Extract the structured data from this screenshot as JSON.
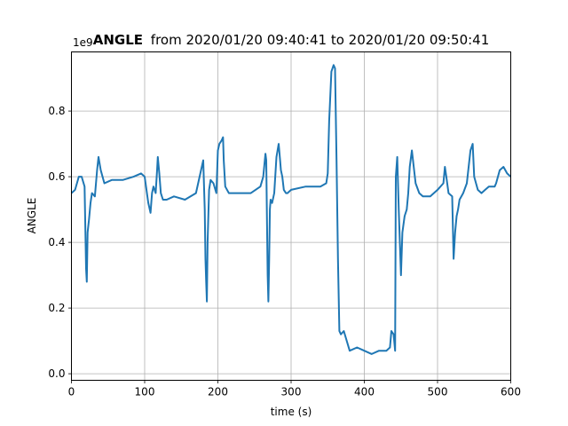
{
  "chart_data": {
    "type": "line",
    "title_bold": "ANGLE",
    "title_rest": "from 2020/01/20 09:40:41 to 2020/01/20 09:50:41",
    "offset_text": "1e9",
    "xlabel": "time (s)",
    "ylabel": "ANGLE",
    "xlim": [
      0,
      600
    ],
    "ylim": [
      -0.02,
      0.98
    ],
    "x_ticks": [
      0,
      100,
      200,
      300,
      400,
      500,
      600
    ],
    "x_tick_labels": [
      "0",
      "100",
      "200",
      "300",
      "400",
      "500",
      "600"
    ],
    "y_ticks": [
      0.0,
      0.2,
      0.4,
      0.6,
      0.8
    ],
    "y_tick_labels": [
      "0.0",
      "0.2",
      "0.4",
      "0.6",
      "0.8"
    ],
    "grid": true,
    "line_color": "#1f77b4",
    "series": [
      {
        "x": [
          0,
          5,
          10,
          14,
          18,
          20,
          21,
          22,
          24,
          26,
          28,
          32,
          35,
          37,
          40,
          45,
          55,
          70,
          85,
          95,
          100,
          105,
          108,
          110,
          112,
          115,
          117,
          118,
          120,
          122,
          125,
          130,
          140,
          155,
          170,
          175,
          180,
          182,
          183,
          184,
          185,
          186,
          188,
          190,
          194,
          198,
          200,
          202,
          205,
          207,
          208,
          210,
          215,
          225,
          245,
          258,
          262,
          265,
          266,
          267,
          268,
          269,
          270,
          271,
          272,
          274,
          277,
          280,
          283,
          285,
          286,
          288,
          290,
          293,
          295,
          300,
          320,
          340,
          348,
          350,
          352,
          355,
          358,
          360,
          362,
          364,
          366,
          368,
          372,
          380,
          390,
          400,
          410,
          420,
          430,
          435,
          437,
          440,
          442,
          443,
          445,
          447,
          450,
          452,
          455,
          458,
          460,
          462,
          465,
          468,
          470,
          475,
          480,
          490,
          500,
          508,
          510,
          512,
          515,
          520,
          522,
          524,
          526,
          528,
          530,
          535,
          540,
          545,
          548,
          550,
          555,
          560,
          565,
          570,
          575,
          578,
          580,
          585,
          590,
          595,
          600
        ],
        "y": [
          0.55,
          0.56,
          0.6,
          0.6,
          0.57,
          0.32,
          0.28,
          0.43,
          0.47,
          0.52,
          0.55,
          0.54,
          0.62,
          0.66,
          0.62,
          0.58,
          0.59,
          0.59,
          0.6,
          0.61,
          0.6,
          0.52,
          0.49,
          0.55,
          0.57,
          0.55,
          0.62,
          0.66,
          0.61,
          0.55,
          0.53,
          0.53,
          0.54,
          0.53,
          0.55,
          0.6,
          0.65,
          0.5,
          0.35,
          0.28,
          0.22,
          0.4,
          0.56,
          0.59,
          0.58,
          0.55,
          0.68,
          0.7,
          0.71,
          0.72,
          0.65,
          0.57,
          0.55,
          0.55,
          0.55,
          0.57,
          0.6,
          0.67,
          0.65,
          0.47,
          0.3,
          0.22,
          0.35,
          0.5,
          0.53,
          0.52,
          0.55,
          0.66,
          0.7,
          0.65,
          0.62,
          0.6,
          0.56,
          0.55,
          0.55,
          0.56,
          0.57,
          0.57,
          0.58,
          0.61,
          0.77,
          0.92,
          0.94,
          0.93,
          0.65,
          0.35,
          0.13,
          0.12,
          0.13,
          0.07,
          0.08,
          0.07,
          0.06,
          0.07,
          0.07,
          0.08,
          0.13,
          0.12,
          0.07,
          0.6,
          0.66,
          0.5,
          0.3,
          0.43,
          0.48,
          0.5,
          0.55,
          0.63,
          0.68,
          0.62,
          0.58,
          0.55,
          0.54,
          0.54,
          0.56,
          0.58,
          0.63,
          0.6,
          0.55,
          0.54,
          0.35,
          0.43,
          0.48,
          0.5,
          0.53,
          0.55,
          0.58,
          0.68,
          0.7,
          0.6,
          0.56,
          0.55,
          0.56,
          0.57,
          0.57,
          0.57,
          0.58,
          0.62,
          0.63,
          0.61,
          0.6
        ]
      }
    ]
  }
}
